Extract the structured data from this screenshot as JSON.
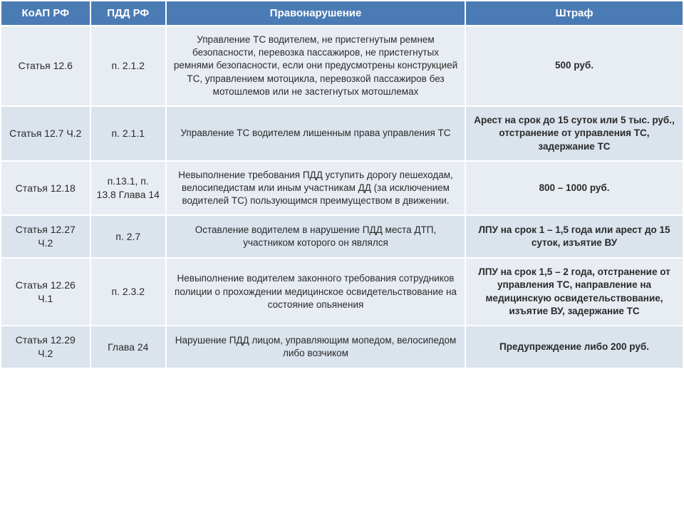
{
  "table": {
    "columns": [
      "КоАП РФ",
      "ПДД РФ",
      "Правонарушение",
      "Штраф"
    ],
    "header_bg": "#4a7bb5",
    "header_fg": "#ffffff",
    "row_bg_even": "#e8edf3",
    "row_bg_odd": "#dbe3ec",
    "text_color": "#2a2a2a",
    "font_family": "Arial",
    "header_fontsize": 15,
    "cell_fontsize": 13.5,
    "col_widths_pct": [
      13,
      11,
      44,
      32
    ],
    "rows": [
      {
        "koap": "Статья 12.6",
        "pdd": "п. 2.1.2",
        "violation": "Управление ТС водителем, не пристегнутым ремнем безопасности, перевозка пассажиров, не пристегнутых ремнями безопасности, если они предусмотрены конструкцией ТС, управлением мотоцикла, перевозкой пассажиров без мотошлемов или не застегнутых мотошлемах",
        "fine": "500 руб."
      },
      {
        "koap": "Статья 12.7 Ч.2",
        "pdd": "п. 2.1.1",
        "violation": "Управление ТС водителем лишенным права управления ТС",
        "fine": "Арест на срок до 15 суток или 5 тыс. руб., отстранение от управления ТС, задержание ТС"
      },
      {
        "koap": "Статья 12.18",
        "pdd": "п.13.1, п. 13.8 Глава 14",
        "violation": "Невыполнение требования ПДД уступить дорогу пешеходам, велосипедистам или иным участникам ДД (за исключением водителей ТС) пользующимся преимуществом в движении.",
        "fine": "800 – 1000 руб."
      },
      {
        "koap": "Статья 12.27 Ч.2",
        "pdd": "п. 2.7",
        "violation": "Оставление водителем в нарушение ПДД места ДТП, участником которого он являлся",
        "fine": "ЛПУ на срок 1 – 1,5 года или арест до 15 суток, изъятие  ВУ"
      },
      {
        "koap": "Статья 12.26 Ч.1",
        "pdd": "п. 2.3.2",
        "violation": "Невыполнение водителем законного требования сотрудников полиции о прохождении  медицинское освидетельствование на состояние опьянения",
        "fine": "ЛПУ на срок 1,5 – 2 года, отстранение от управления ТС, направление на медицинскую освидетельствование, изъятие ВУ, задержание ТС"
      },
      {
        "koap": "Статья 12.29 Ч.2",
        "pdd": "Глава 24",
        "violation": "Нарушение ПДД лицом, управляющим мопедом, велосипедом либо возчиком",
        "fine": "Предупреждение либо 200 руб."
      }
    ]
  }
}
